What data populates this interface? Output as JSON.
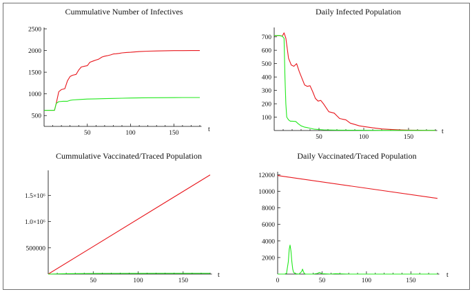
{
  "colors": {
    "red": "#e8141a",
    "green": "#1fe81a"
  },
  "chart_data": [
    {
      "id": "p1",
      "type": "line",
      "title": "Cummulative Number of Infectives",
      "xlabel": "t",
      "ylabel": "",
      "xlim": [
        0,
        182
      ],
      "ylim": [
        250,
        2500
      ],
      "xticks": [
        "50",
        "100",
        "150"
      ],
      "yticks": [
        "500",
        "1000",
        "1500",
        "2000",
        "2500"
      ],
      "series": [
        {
          "name": "red",
          "color": "#e8141a",
          "x": [
            0,
            12,
            14,
            17,
            20,
            24,
            27,
            30,
            33,
            37,
            40,
            43,
            47,
            50,
            53,
            57,
            60,
            63,
            67,
            70,
            73,
            77,
            80,
            83,
            87,
            90,
            95,
            100,
            110,
            120,
            130,
            140,
            150,
            160,
            170,
            180
          ],
          "y": [
            620,
            620,
            780,
            1050,
            1100,
            1120,
            1300,
            1400,
            1430,
            1450,
            1550,
            1620,
            1640,
            1650,
            1730,
            1760,
            1780,
            1800,
            1850,
            1870,
            1880,
            1900,
            1920,
            1925,
            1935,
            1945,
            1955,
            1960,
            1975,
            1985,
            1990,
            1995,
            1998,
            1998,
            2000,
            2000
          ]
        },
        {
          "name": "green",
          "color": "#1fe81a",
          "x": [
            0,
            12,
            14,
            17,
            22,
            27,
            30,
            33,
            40,
            50,
            60,
            70,
            80,
            90,
            100,
            120,
            140,
            160,
            180
          ],
          "y": [
            620,
            620,
            780,
            820,
            830,
            830,
            850,
            860,
            870,
            880,
            885,
            890,
            895,
            900,
            905,
            910,
            912,
            915,
            915
          ]
        }
      ]
    },
    {
      "id": "p2",
      "type": "line",
      "title": "Daily Infected Population",
      "xlabel": "t",
      "ylabel": "",
      "xlim": [
        0,
        182
      ],
      "ylim": [
        0,
        760
      ],
      "xticks": [
        "50",
        "100",
        "150"
      ],
      "yticks": [
        "100",
        "200",
        "300",
        "400",
        "500",
        "600",
        "700"
      ],
      "series": [
        {
          "name": "red",
          "color": "#e8141a",
          "x": [
            0,
            6,
            9,
            11,
            13,
            16,
            19,
            22,
            25,
            28,
            31,
            34,
            37,
            40,
            43,
            46,
            49,
            52,
            55,
            58,
            61,
            64,
            67,
            70,
            73,
            76,
            80,
            85,
            90,
            95,
            100,
            110,
            120,
            130,
            140,
            150,
            160,
            170,
            180
          ],
          "y": [
            710,
            710,
            705,
            730,
            690,
            540,
            490,
            480,
            500,
            440,
            390,
            340,
            330,
            335,
            290,
            240,
            220,
            225,
            200,
            170,
            140,
            135,
            130,
            110,
            90,
            85,
            80,
            55,
            45,
            35,
            30,
            20,
            12,
            8,
            5,
            3,
            2,
            1,
            1
          ]
        },
        {
          "name": "green",
          "color": "#1fe81a",
          "x": [
            0,
            6,
            9,
            11,
            12,
            13,
            14,
            16,
            18,
            20,
            24,
            27,
            30,
            34,
            38,
            45,
            55,
            70,
            90,
            120,
            150,
            180
          ],
          "y": [
            710,
            710,
            705,
            690,
            400,
            200,
            100,
            80,
            70,
            70,
            68,
            50,
            35,
            25,
            20,
            10,
            5,
            3,
            2,
            1,
            1,
            1
          ]
        }
      ]
    },
    {
      "id": "p3",
      "type": "line",
      "title": "Cummulative Vaccinated/Traced Population",
      "xlabel": "t",
      "ylabel": "",
      "xlim": [
        0,
        182
      ],
      "ylim": [
        0,
        1950000
      ],
      "xticks": [
        "50",
        "100",
        "150"
      ],
      "yticks": [
        "500000",
        "1.0×10⁶",
        "1.5×10⁶"
      ],
      "ytick_values": [
        500000,
        1000000,
        1500000
      ],
      "series": [
        {
          "name": "red",
          "color": "#e8141a",
          "x": [
            0,
            180
          ],
          "y": [
            0,
            1890000
          ]
        },
        {
          "name": "green",
          "color": "#1fe81a",
          "x": [
            0,
            20,
            60,
            120,
            180
          ],
          "y": [
            0,
            8000,
            12000,
            14000,
            15000
          ]
        }
      ]
    },
    {
      "id": "p4",
      "type": "line",
      "title": "Daily Vaccinated/Traced Population",
      "xlabel": "t",
      "ylabel": "",
      "xlim": [
        0,
        182
      ],
      "ylim": [
        0,
        12200
      ],
      "xticks": [
        "0",
        "50",
        "100",
        "150"
      ],
      "xtick_values": [
        0,
        50,
        100,
        150
      ],
      "yticks": [
        "2000",
        "4000",
        "6000",
        "8000",
        "10000",
        "12000"
      ],
      "series": [
        {
          "name": "red",
          "color": "#e8141a",
          "x": [
            0,
            180
          ],
          "y": [
            11900,
            9150
          ]
        },
        {
          "name": "green",
          "color": "#1fe81a",
          "x": [
            0,
            8,
            10,
            12,
            13,
            14,
            15,
            16,
            17,
            18,
            20,
            24,
            27,
            28,
            29,
            30,
            32,
            40,
            45,
            47,
            50,
            60,
            65,
            80,
            100,
            150,
            180
          ],
          "y": [
            0,
            0,
            100,
            1500,
            3000,
            3500,
            2800,
            1500,
            600,
            200,
            50,
            0,
            300,
            600,
            300,
            50,
            0,
            0,
            80,
            200,
            50,
            0,
            50,
            0,
            0,
            0,
            0
          ]
        }
      ]
    }
  ]
}
